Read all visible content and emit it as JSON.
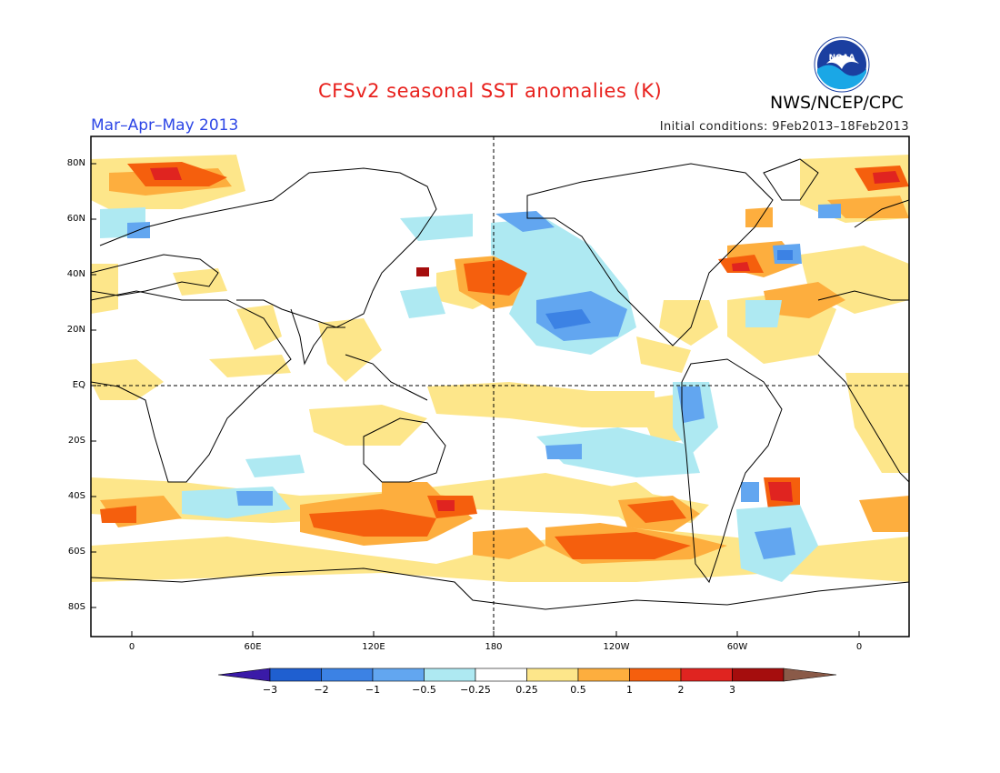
{
  "title": "CFSv2 seasonal SST anomalies (K)",
  "agency": "NWS/NCEP/CPC",
  "logo_text": "NOAA",
  "season": "Mar–Apr–May 2013",
  "initial_conditions": "Initial conditions: 9Feb2013–18Feb2013",
  "lat_labels": [
    "80N",
    "60N",
    "40N",
    "20N",
    "EQ",
    "20S",
    "40S",
    "60S",
    "80S"
  ],
  "lon_labels": [
    "0",
    "60E",
    "120E",
    "180",
    "120W",
    "60W",
    "0"
  ],
  "colorbar": {
    "labels": [
      "−3",
      "−2",
      "−1",
      "−0.5",
      "−0.25",
      "0.25",
      "0.5",
      "1",
      "2",
      "3"
    ],
    "colors": [
      "#3a1aa8",
      "#1f5fd0",
      "#3c82e4",
      "#62a6f0",
      "#aee9f2",
      "#ffffff",
      "#fde68a",
      "#fdae3e",
      "#f55f0d",
      "#e02420",
      "#a50d0d",
      "#8a5a48"
    ]
  }
}
